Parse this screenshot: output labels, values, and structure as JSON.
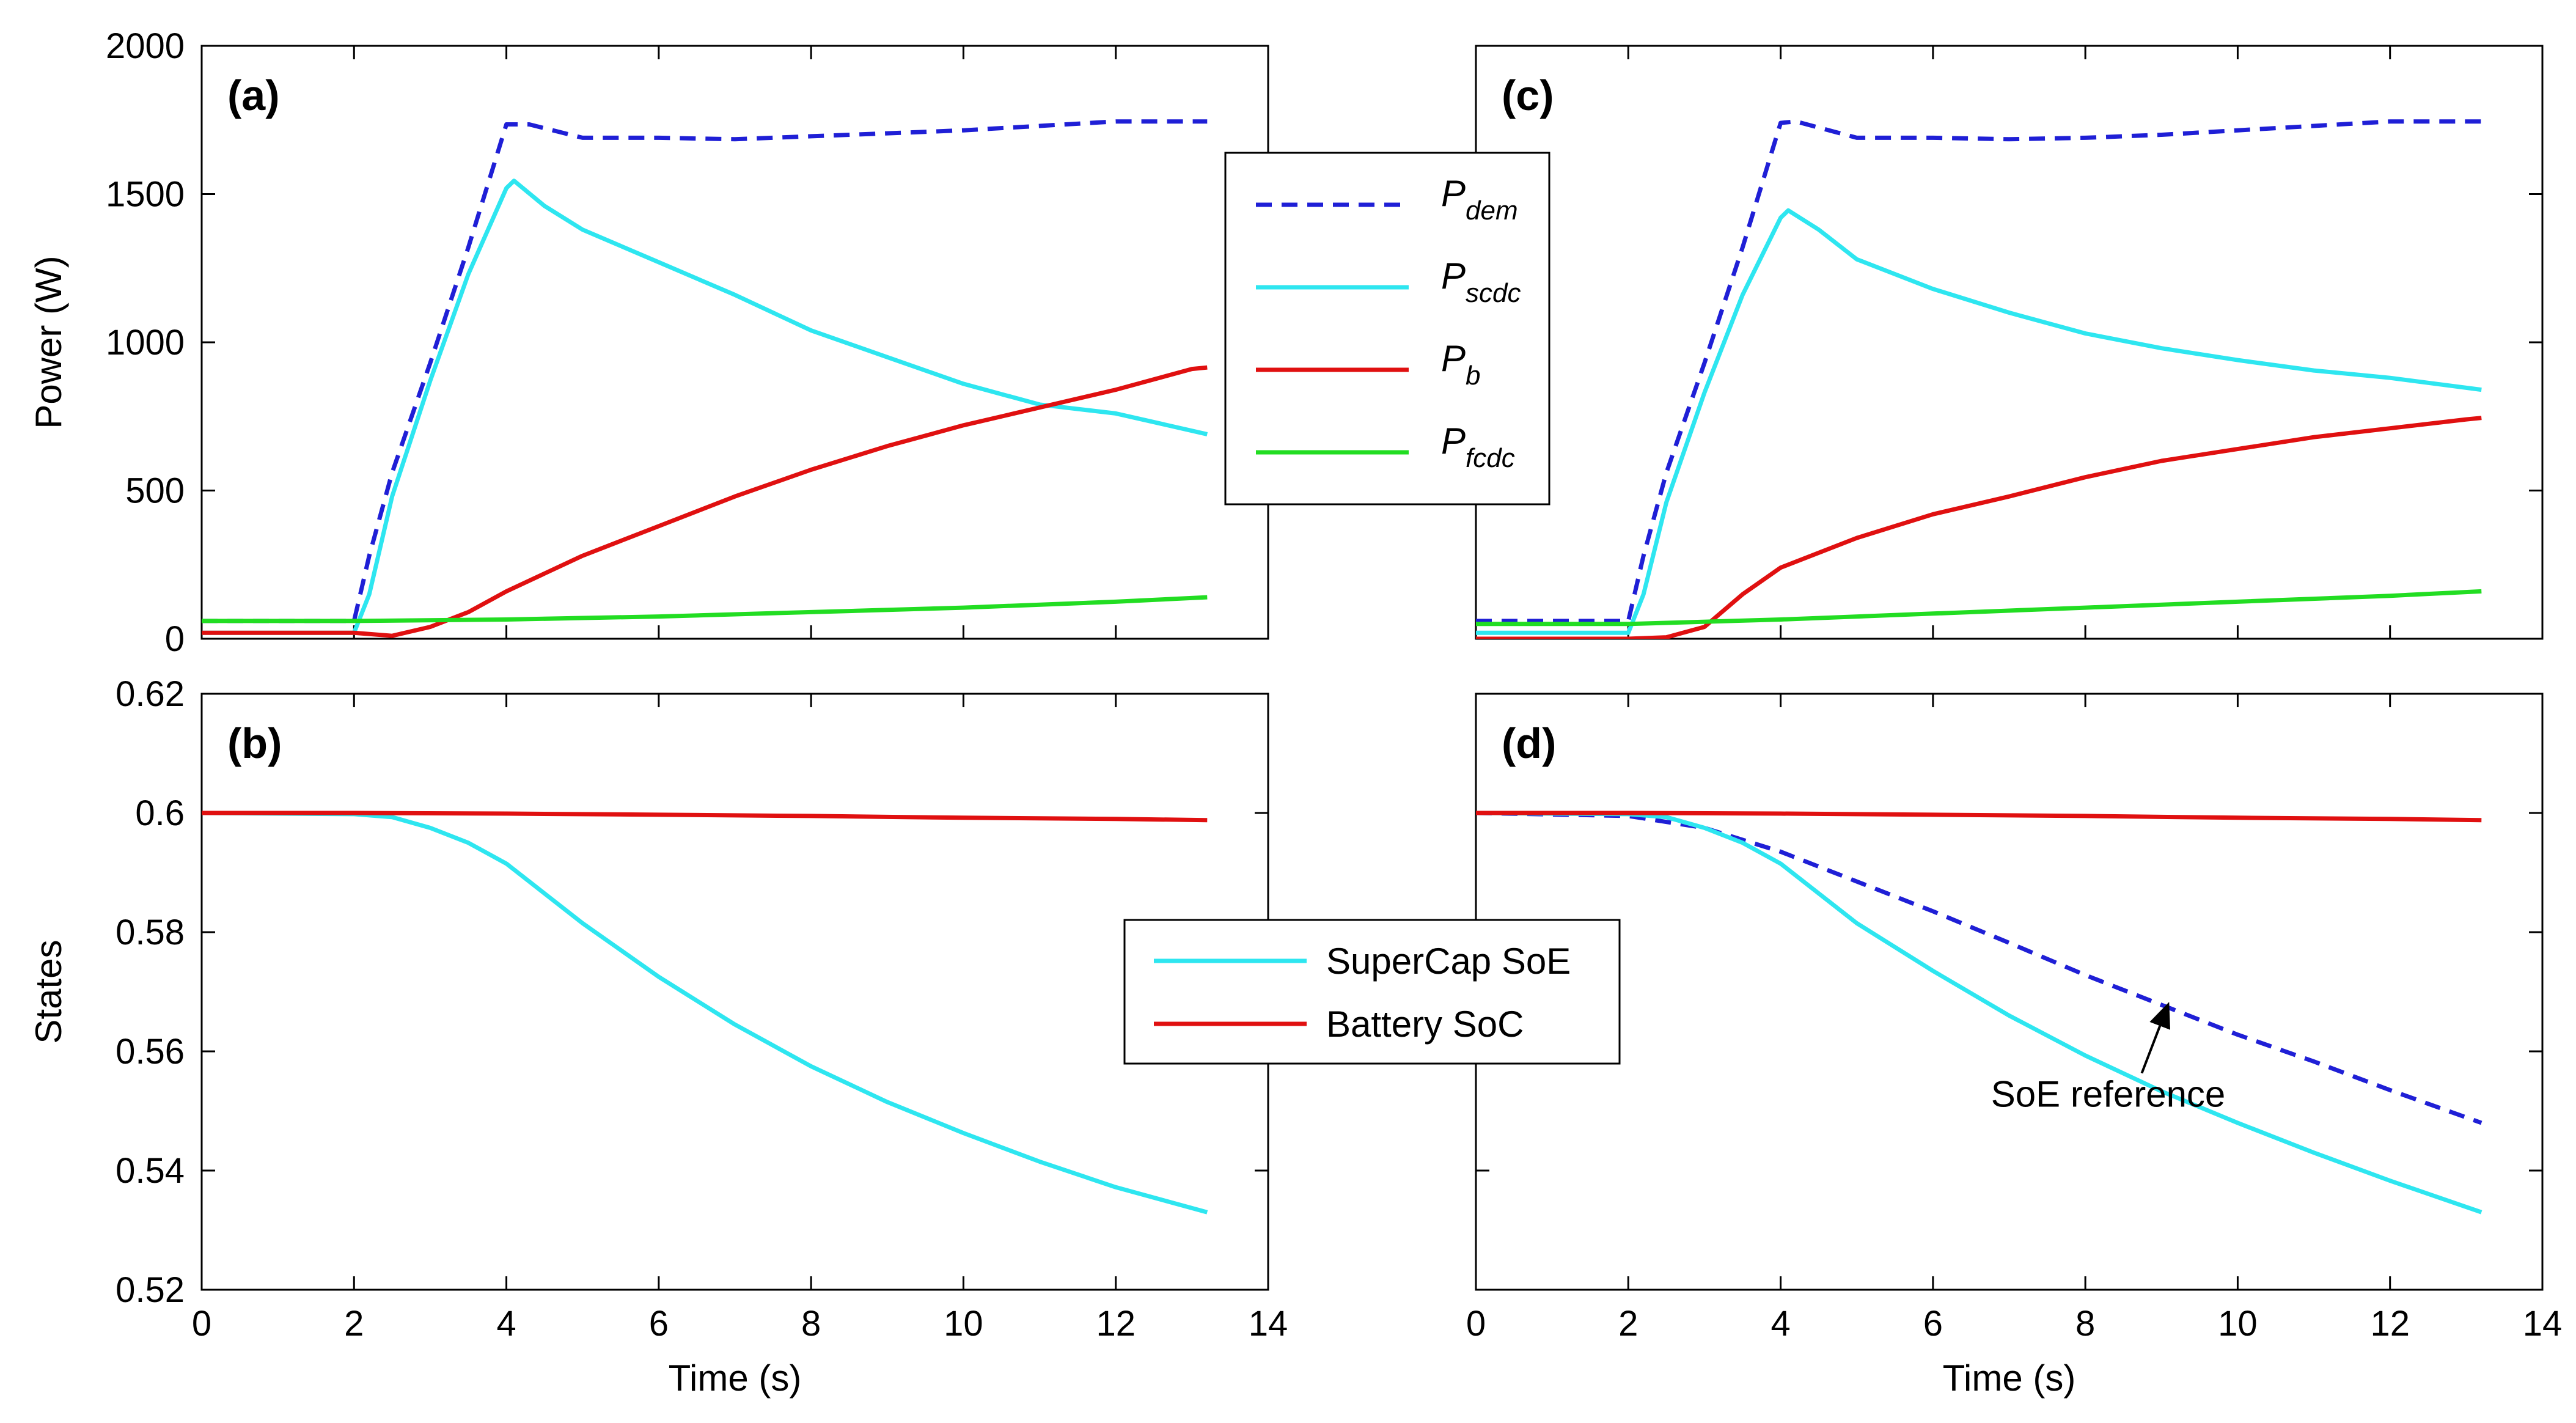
{
  "chart_data": [
    {
      "id": "a",
      "type": "line",
      "panel_label": "(a)",
      "xlabel": "",
      "ylabel": "Power (W)",
      "xlim": [
        0,
        14
      ],
      "ylim": [
        0,
        2000
      ],
      "xticks": [
        0,
        2,
        4,
        6,
        8,
        10,
        12,
        14
      ],
      "yticks": [
        0,
        500,
        1000,
        1500,
        2000
      ],
      "show_xtick_labels": false,
      "show_ytick_labels": true,
      "grid": false,
      "series": [
        {
          "key": "P_dem",
          "color": "#1f1fd6",
          "dash": "dashed",
          "x": [
            0,
            2,
            2.2,
            2.5,
            3,
            3.5,
            4,
            4.3,
            5,
            6,
            7,
            8,
            9,
            10,
            11,
            12,
            13.2
          ],
          "y": [
            60,
            60,
            280,
            560,
            930,
            1320,
            1735,
            1735,
            1690,
            1690,
            1685,
            1695,
            1705,
            1715,
            1730,
            1745,
            1745
          ]
        },
        {
          "key": "P_scdc",
          "color": "#2ee6f0",
          "dash": "solid",
          "x": [
            0,
            2,
            2.2,
            2.5,
            3,
            3.5,
            4,
            4.1,
            4.5,
            5,
            6,
            7,
            8,
            9,
            10,
            11,
            12,
            13.2
          ],
          "y": [
            20,
            20,
            150,
            480,
            870,
            1230,
            1520,
            1545,
            1460,
            1380,
            1270,
            1160,
            1040,
            950,
            860,
            790,
            760,
            690
          ]
        },
        {
          "key": "P_b",
          "color": "#e01010",
          "dash": "solid",
          "x": [
            0,
            2,
            2.5,
            3,
            3.5,
            4,
            5,
            6,
            7,
            8,
            9,
            10,
            11,
            12,
            13,
            13.2
          ],
          "y": [
            20,
            20,
            10,
            40,
            90,
            160,
            280,
            380,
            480,
            570,
            650,
            720,
            780,
            840,
            910,
            915
          ]
        },
        {
          "key": "P_fcdc",
          "color": "#22dd22",
          "dash": "solid",
          "x": [
            0,
            2,
            4,
            6,
            8,
            10,
            12,
            13.2
          ],
          "y": [
            60,
            60,
            65,
            75,
            90,
            105,
            125,
            140
          ]
        }
      ]
    },
    {
      "id": "b",
      "type": "line",
      "panel_label": "(b)",
      "xlabel": "Time (s)",
      "ylabel": "States",
      "xlim": [
        0,
        14
      ],
      "ylim": [
        0.52,
        0.62
      ],
      "xticks": [
        0,
        2,
        4,
        6,
        8,
        10,
        12,
        14
      ],
      "yticks": [
        0.52,
        0.54,
        0.56,
        0.58,
        0.6,
        0.62
      ],
      "show_xtick_labels": true,
      "show_ytick_labels": true,
      "grid": false,
      "series": [
        {
          "key": "SuperCap SoE",
          "color": "#2ee6f0",
          "dash": "solid",
          "x": [
            0,
            2,
            2.5,
            3,
            3.5,
            4,
            5,
            6,
            7,
            8,
            9,
            10,
            11,
            12,
            13.2
          ],
          "y": [
            0.6,
            0.5998,
            0.5993,
            0.5975,
            0.595,
            0.5915,
            0.5815,
            0.5725,
            0.5645,
            0.5575,
            0.5515,
            0.5463,
            0.5415,
            0.5372,
            0.533
          ]
        },
        {
          "key": "Battery SoC",
          "color": "#e01010",
          "dash": "solid",
          "x": [
            0,
            2,
            4,
            6,
            8,
            10,
            12,
            13.2
          ],
          "y": [
            0.6,
            0.6,
            0.5999,
            0.5997,
            0.5995,
            0.5992,
            0.599,
            0.5988
          ]
        }
      ]
    },
    {
      "id": "c",
      "type": "line",
      "panel_label": "(c)",
      "xlabel": "",
      "ylabel": "",
      "xlim": [
        0,
        14
      ],
      "ylim": [
        0,
        2000
      ],
      "xticks": [
        0,
        2,
        4,
        6,
        8,
        10,
        12,
        14
      ],
      "yticks": [
        0,
        500,
        1000,
        1500,
        2000
      ],
      "show_xtick_labels": false,
      "show_ytick_labels": false,
      "grid": false,
      "series": [
        {
          "key": "P_dem",
          "color": "#1f1fd6",
          "dash": "dashed",
          "x": [
            0,
            2,
            2.2,
            2.5,
            3,
            3.5,
            4,
            4.2,
            5,
            6,
            7,
            8,
            9,
            10,
            11,
            12,
            13.2
          ],
          "y": [
            60,
            60,
            280,
            560,
            930,
            1320,
            1740,
            1745,
            1690,
            1690,
            1685,
            1690,
            1700,
            1715,
            1730,
            1745,
            1745
          ]
        },
        {
          "key": "P_scdc",
          "color": "#2ee6f0",
          "dash": "solid",
          "x": [
            0,
            2,
            2.2,
            2.5,
            3,
            3.5,
            4,
            4.1,
            4.5,
            5,
            6,
            7,
            8,
            9,
            10,
            11,
            12,
            13.2
          ],
          "y": [
            20,
            20,
            150,
            460,
            830,
            1160,
            1420,
            1445,
            1380,
            1280,
            1180,
            1100,
            1030,
            980,
            940,
            905,
            880,
            840
          ]
        },
        {
          "key": "P_b",
          "color": "#e01010",
          "dash": "solid",
          "x": [
            0,
            2,
            2.5,
            3,
            3.5,
            4,
            5,
            6,
            7,
            8,
            9,
            10,
            11,
            12,
            13,
            13.2
          ],
          "y": [
            0,
            0,
            5,
            40,
            150,
            240,
            340,
            420,
            480,
            545,
            600,
            640,
            680,
            710,
            740,
            745
          ]
        },
        {
          "key": "P_fcdc",
          "color": "#22dd22",
          "dash": "solid",
          "x": [
            0,
            2,
            4,
            6,
            8,
            10,
            12,
            13.2
          ],
          "y": [
            50,
            50,
            65,
            85,
            105,
            125,
            145,
            160
          ]
        }
      ]
    },
    {
      "id": "d",
      "type": "line",
      "panel_label": "(d)",
      "xlabel": "Time (s)",
      "ylabel": "",
      "xlim": [
        0,
        14
      ],
      "ylim": [
        0.52,
        0.62
      ],
      "xticks": [
        0,
        2,
        4,
        6,
        8,
        10,
        12,
        14
      ],
      "yticks": [
        0.52,
        0.54,
        0.56,
        0.58,
        0.6,
        0.62
      ],
      "show_xtick_labels": true,
      "show_ytick_labels": false,
      "grid": false,
      "series": [
        {
          "key": "SoE reference",
          "color": "#1f1fd6",
          "dash": "dashed",
          "x": [
            0,
            2,
            3,
            4,
            5,
            6,
            7,
            8,
            9,
            10,
            11,
            12,
            13.2
          ],
          "y": [
            0.6,
            0.5995,
            0.5975,
            0.5935,
            0.5885,
            0.5835,
            0.5782,
            0.5728,
            0.5678,
            0.5628,
            0.5583,
            0.5535,
            0.548
          ]
        },
        {
          "key": "SuperCap SoE",
          "color": "#2ee6f0",
          "dash": "solid",
          "x": [
            0,
            2,
            2.5,
            3,
            3.5,
            4,
            5,
            6,
            7,
            8,
            9,
            10,
            11,
            12,
            13.2
          ],
          "y": [
            0.6,
            0.5998,
            0.5993,
            0.5975,
            0.595,
            0.5915,
            0.5815,
            0.5735,
            0.566,
            0.5593,
            0.5533,
            0.548,
            0.543,
            0.5383,
            0.533
          ]
        },
        {
          "key": "Battery SoC",
          "color": "#e01010",
          "dash": "solid",
          "x": [
            0,
            2,
            4,
            6,
            8,
            10,
            12,
            13.2
          ],
          "y": [
            0.6,
            0.6,
            0.5999,
            0.5997,
            0.5995,
            0.5992,
            0.599,
            0.5988
          ]
        }
      ],
      "annotation": {
        "text": "SoE reference",
        "arrow_to": [
          9.1,
          0.5683
        ],
        "text_at": [
          8.3,
          0.5507
        ]
      }
    }
  ],
  "legends": {
    "power": {
      "placement": "center-top",
      "entries": [
        {
          "main": "P",
          "sub": "dem",
          "color": "#1f1fd6",
          "dash": "dashed"
        },
        {
          "main": "P",
          "sub": "scdc",
          "color": "#2ee6f0",
          "dash": "solid"
        },
        {
          "main": "P",
          "sub": "b",
          "color": "#e01010",
          "dash": "solid"
        },
        {
          "main": "P",
          "sub": "fcdc",
          "color": "#22dd22",
          "dash": "solid"
        }
      ]
    },
    "states": {
      "placement": "center-bottom",
      "entries": [
        {
          "label": "SuperCap SoE",
          "color": "#2ee6f0",
          "dash": "solid"
        },
        {
          "label": "Battery SoC",
          "color": "#e01010",
          "dash": "solid"
        }
      ]
    }
  }
}
